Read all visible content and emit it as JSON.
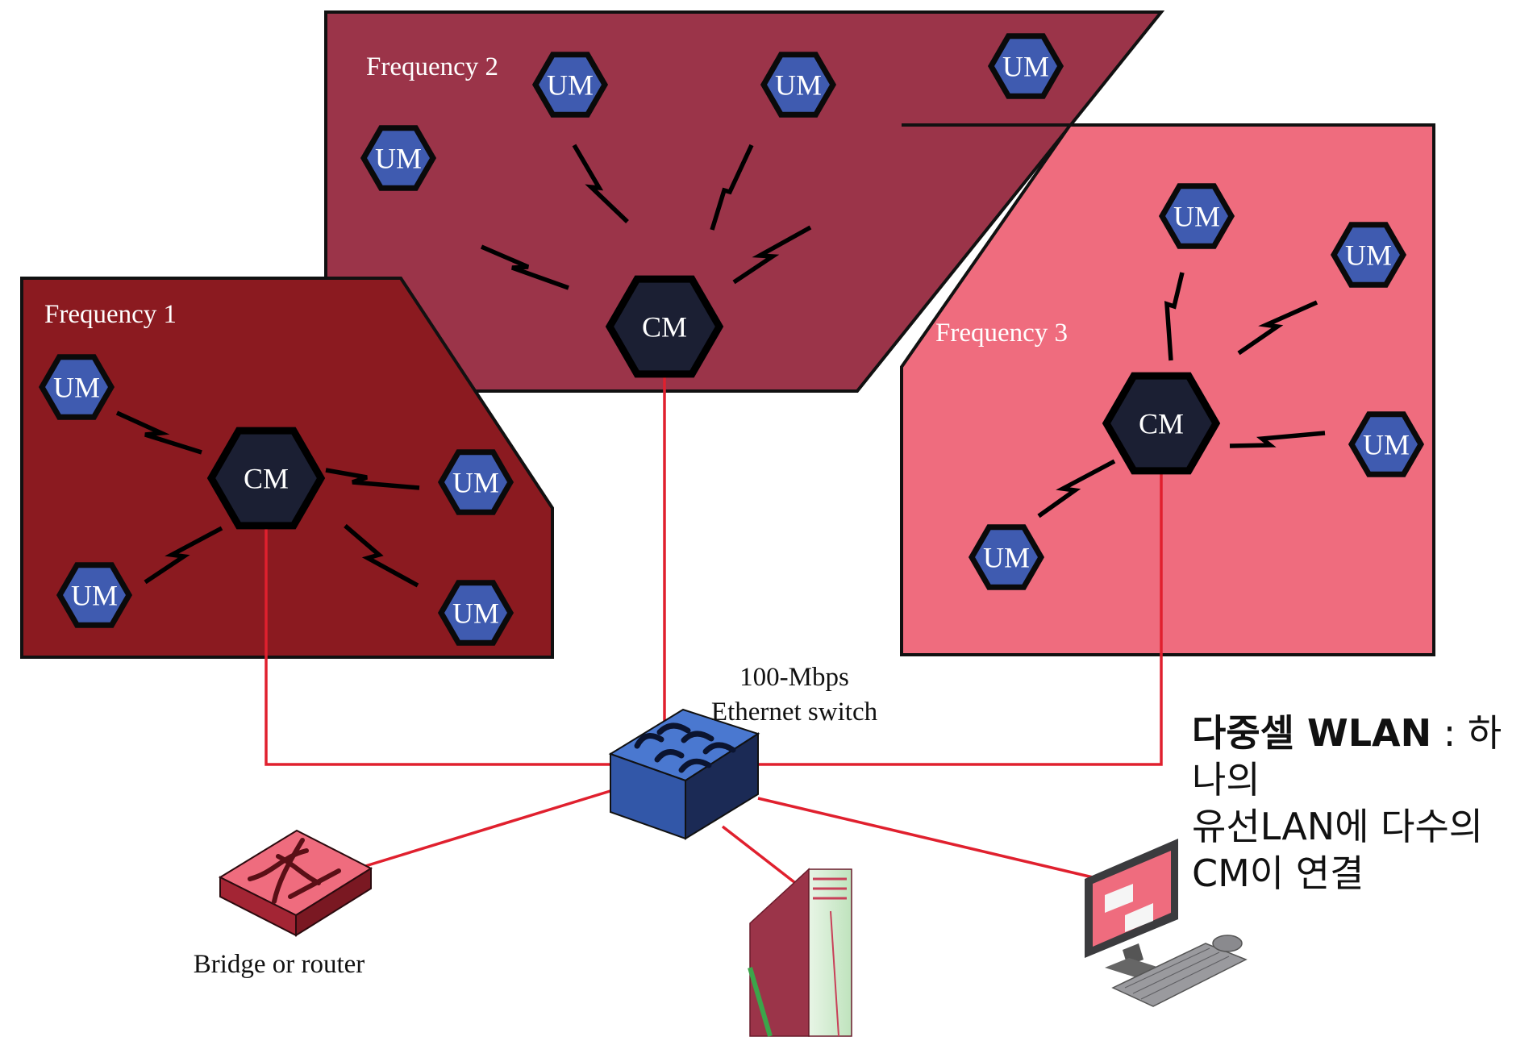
{
  "zones": [
    {
      "id": "zone-1",
      "label": "Frequency 1",
      "fill": "#8B1A20"
    },
    {
      "id": "zone-2",
      "label": "Frequency 2",
      "fill": "#9B3449"
    },
    {
      "id": "zone-3",
      "label": "Frequency 3",
      "fill": "#EF6C7E"
    }
  ],
  "nodes": {
    "cm_label": "CM",
    "um_label": "UM"
  },
  "switch_label": {
    "line1": "100-Mbps",
    "line2": "Ethernet switch"
  },
  "router_label": "Bridge or router",
  "caption": {
    "bold": "다중셀 WLAN",
    "separator": " : ",
    "text1": "하나의",
    "text2": "유선LAN에 다수의",
    "text3": "CM이 연결"
  },
  "colors": {
    "link": "#E0202E",
    "cm_fill": "#1B1F33",
    "um_fill": "#3F5BB0",
    "switch_top": "#4A78D0",
    "switch_front": "#3257A8",
    "switch_side": "#1B2A55"
  }
}
